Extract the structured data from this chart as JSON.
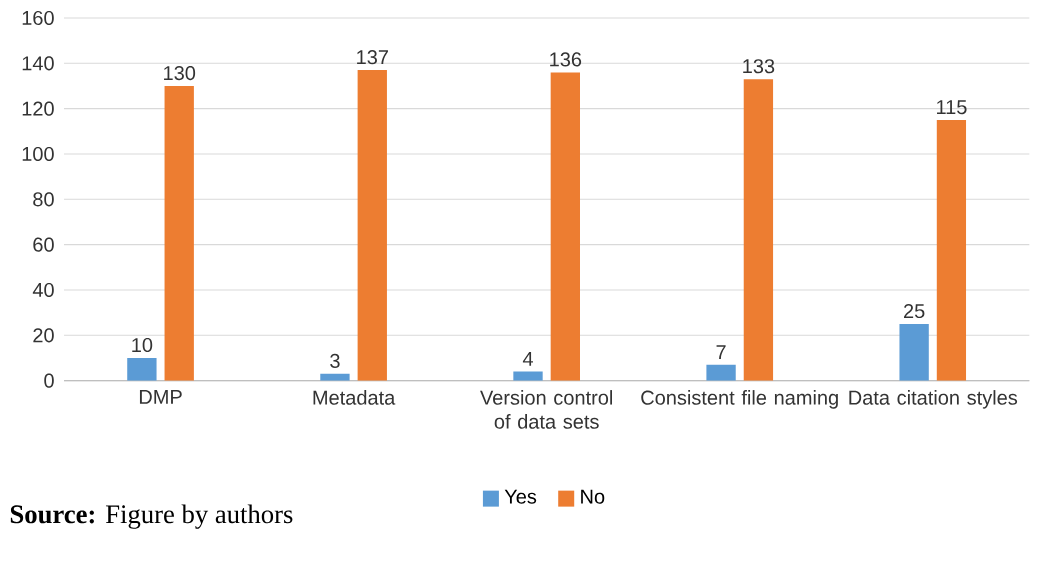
{
  "chart_data": {
    "type": "bar",
    "categories": [
      "DMP",
      "Metadata",
      "Version control of data sets",
      "Consistent file naming",
      "Data citation styles"
    ],
    "series": [
      {
        "name": "Yes",
        "color": "#5b9bd5",
        "values": [
          10,
          3,
          4,
          7,
          25
        ]
      },
      {
        "name": "No",
        "color": "#ed7d31",
        "values": [
          130,
          137,
          136,
          133,
          115
        ]
      }
    ],
    "ylim": [
      0,
      160
    ],
    "yticks": [
      0,
      20,
      40,
      60,
      80,
      100,
      120,
      140,
      160
    ],
    "grid": "y",
    "legend": "bottom",
    "data_labels": true,
    "annotations": [
      "**Source:** Figure by authors"
    ]
  }
}
